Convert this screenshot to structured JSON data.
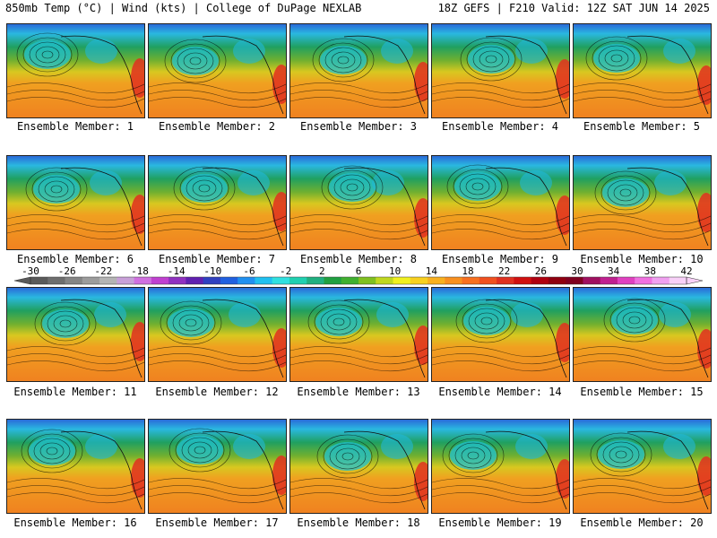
{
  "header": {
    "left": "850mb Temp (°C) | Wind (kts) | College of DuPage NEXLAB",
    "right": "18Z GEFS | F210 Valid: 12Z SAT JUN 14 2025"
  },
  "members": [
    "Ensemble Member: 1",
    "Ensemble Member: 2",
    "Ensemble Member: 3",
    "Ensemble Member: 4",
    "Ensemble Member: 5",
    "Ensemble Member: 6",
    "Ensemble Member: 7",
    "Ensemble Member: 8",
    "Ensemble Member: 9",
    "Ensemble Member: 10",
    "Ensemble Member: 11",
    "Ensemble Member: 12",
    "Ensemble Member: 13",
    "Ensemble Member: 14",
    "Ensemble Member: 15",
    "Ensemble Member: 16",
    "Ensemble Member: 17",
    "Ensemble Member: 18",
    "Ensemble Member: 19",
    "Ensemble Member: 20"
  ],
  "colorbar": {
    "labels": [
      "-30",
      "-26",
      "-22",
      "-18",
      "-14",
      "-10",
      "-6",
      "-2",
      "2",
      "6",
      "10",
      "14",
      "18",
      "22",
      "26",
      "30",
      "34",
      "38",
      "42"
    ],
    "colors": [
      "#5a5a5a",
      "#6e6e6e",
      "#858585",
      "#9c9c9c",
      "#b4b4b4",
      "#c8a0d8",
      "#d070e0",
      "#c040d0",
      "#9030c0",
      "#6020b0",
      "#3040c0",
      "#2060e0",
      "#2090f0",
      "#20c0f0",
      "#30e0e0",
      "#20d0b0",
      "#20b080",
      "#20a040",
      "#40b030",
      "#80c020",
      "#c0d820",
      "#f0f020",
      "#f8d020",
      "#f8b020",
      "#f89020",
      "#f87020",
      "#f05020",
      "#e03020",
      "#d01010",
      "#b00010",
      "#900010",
      "#800020",
      "#a01060",
      "#c02090",
      "#e040c0",
      "#f070e0",
      "#f0a0f0",
      "#f8d0f8"
    ]
  }
}
